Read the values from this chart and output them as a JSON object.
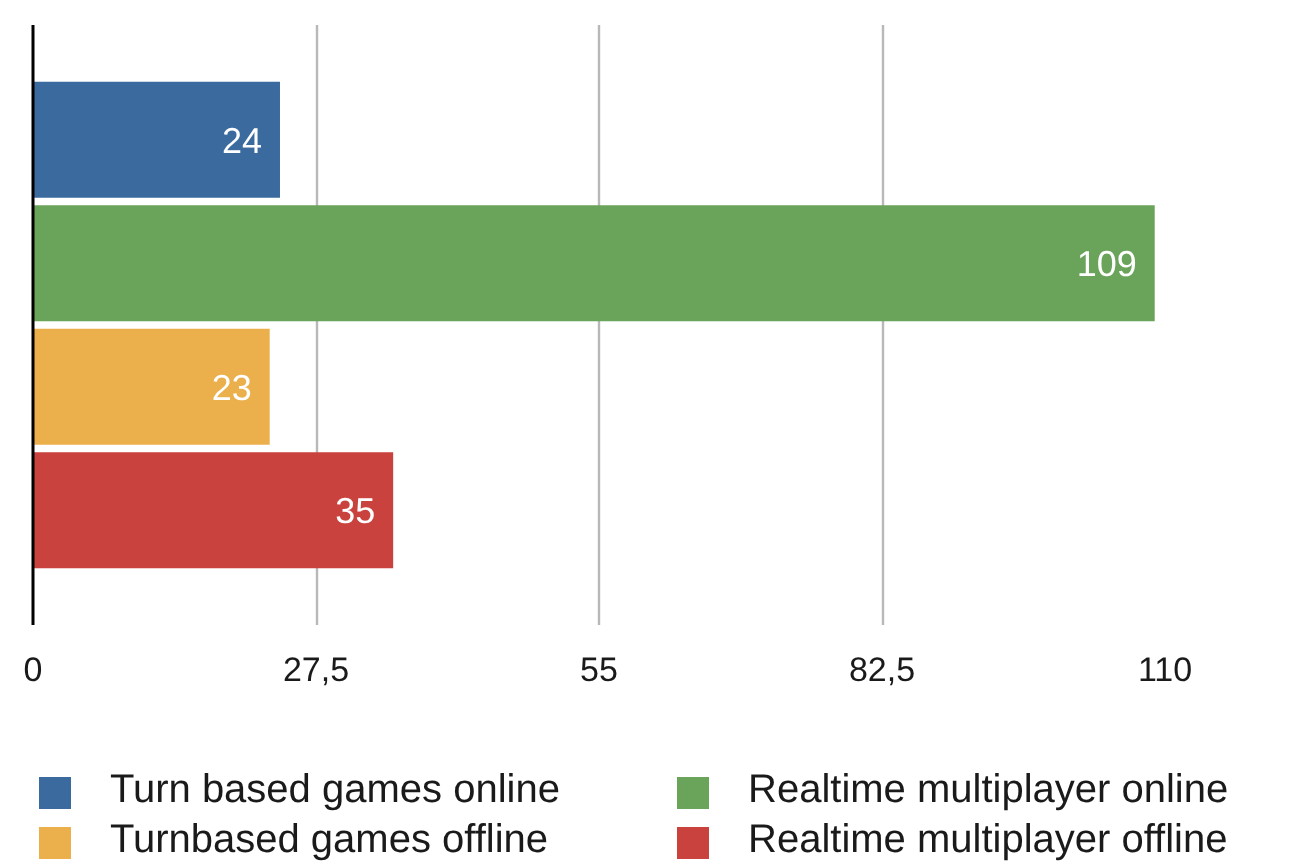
{
  "chart_data": {
    "type": "bar",
    "orientation": "horizontal",
    "categories": [
      null
    ],
    "series": [
      {
        "name": "Turn based games online",
        "color": "#3a6a9e",
        "values": [
          24
        ]
      },
      {
        "name": "Realtime multiplayer online",
        "color": "#6aa45a",
        "values": [
          109
        ]
      },
      {
        "name": "Turnbased games offline",
        "color": "#ebaf4c",
        "values": [
          23
        ]
      },
      {
        "name": "Realtime multiplayer offline",
        "color": "#c9423d",
        "values": [
          35
        ]
      }
    ],
    "xlim": [
      0,
      110
    ],
    "xticks": [
      0,
      {
        "value": 27.5,
        "label": "27,5"
      },
      55,
      {
        "value": 82.5,
        "label": "82,5"
      },
      110
    ],
    "grid": "x",
    "legend": "bottom",
    "data_labels": true,
    "tick_labels": "x"
  }
}
